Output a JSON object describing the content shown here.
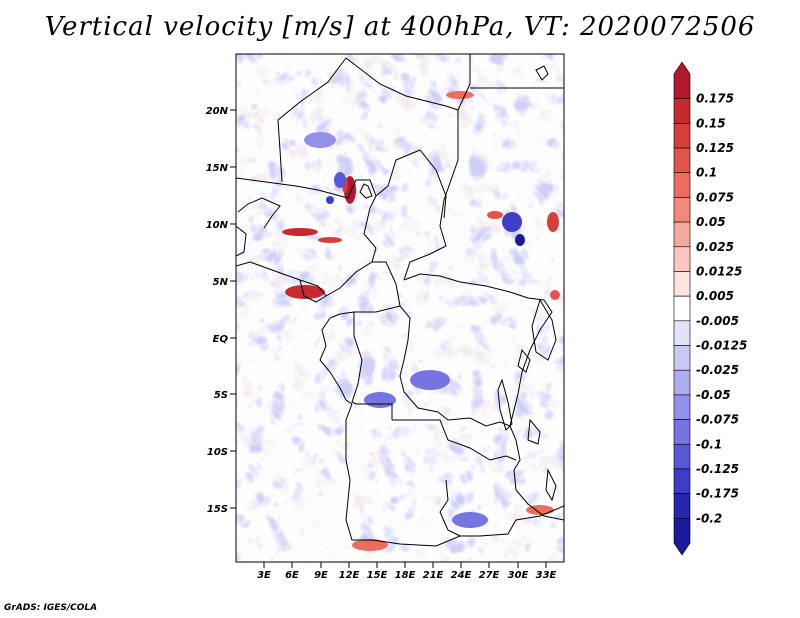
{
  "title": "Vertical velocity [m/s] at 400hPa, VT: 2020072506",
  "footer": "GrADS: IGES/COLA",
  "map": {
    "lat_ticks": [
      "20N",
      "15N",
      "10N",
      "5N",
      "EQ",
      "5S",
      "10S",
      "15S"
    ],
    "lon_ticks": [
      "3E",
      "6E",
      "9E",
      "12E",
      "15E",
      "18E",
      "21E",
      "24E",
      "27E",
      "30E",
      "33E"
    ],
    "lon_range": [
      0,
      35
    ],
    "lat_range": [
      -20,
      24.5
    ],
    "field": "vertical velocity"
  },
  "colorbar": {
    "labels": [
      "0.175",
      "0.15",
      "0.125",
      "0.1",
      "0.075",
      "0.05",
      "0.025",
      "0.0125",
      "0.005",
      "-0.005",
      "-0.0125",
      "-0.025",
      "-0.05",
      "-0.075",
      "-0.1",
      "-0.125",
      "-0.175",
      "-0.2"
    ],
    "colors": [
      "#b2182b",
      "#c62a2f",
      "#d63e3a",
      "#e25449",
      "#ec6c5e",
      "#f28a7c",
      "#f7a99d",
      "#fbc8c0",
      "#fde4e0",
      "#ffffff",
      "#e2e2fb",
      "#c9c9f5",
      "#adaef0",
      "#9191ea",
      "#7575e2",
      "#5858d7",
      "#3d3dc8",
      "#2525b4",
      "#1a1aa0"
    ]
  }
}
